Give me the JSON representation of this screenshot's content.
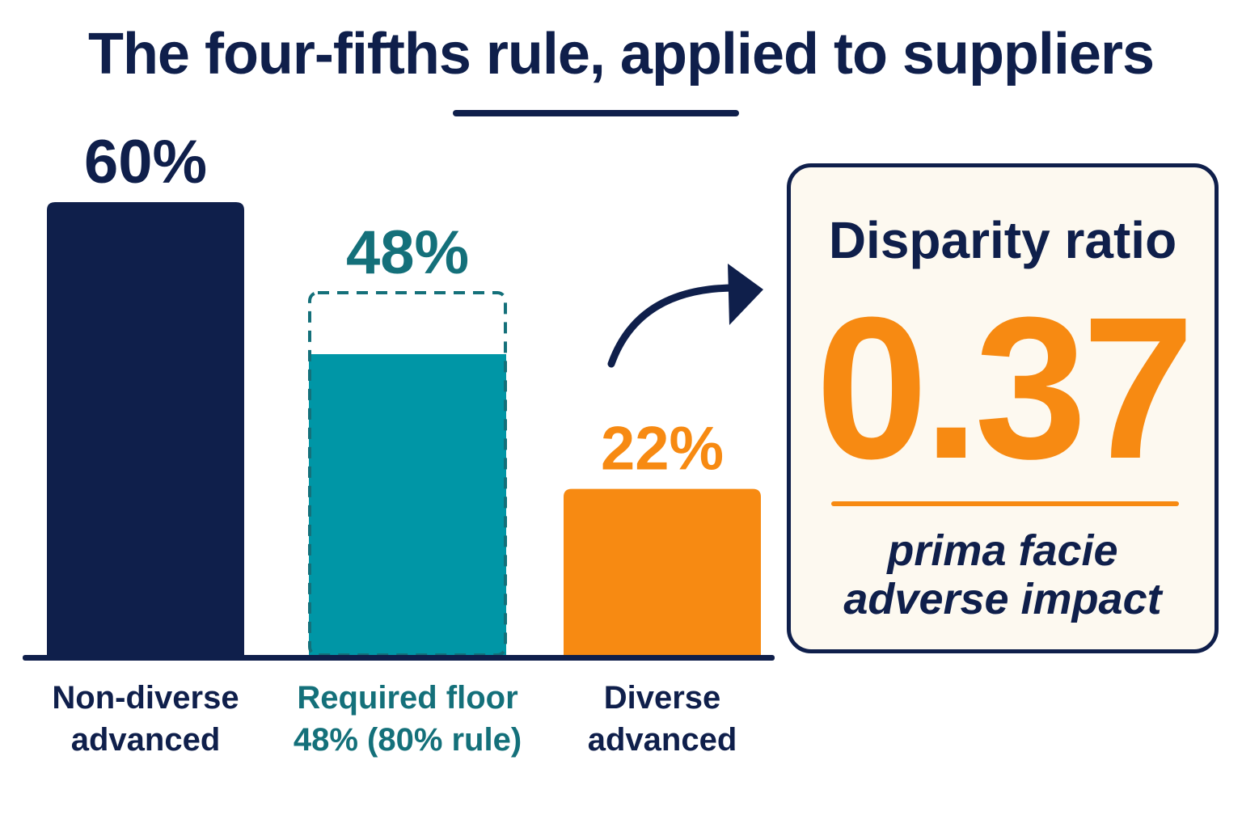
{
  "title": "The four-fifths rule, applied to suppliers",
  "colors": {
    "navy": "#0f1f4b",
    "teal": "#0096a6",
    "teal_text": "#14707a",
    "orange": "#f78a12",
    "callout_bg": "#fdf9f0"
  },
  "chart_data": {
    "type": "bar",
    "title": "The four-fifths rule, applied to suppliers",
    "categories": [
      "Non-diverse advanced",
      "Required floor 48% (80% rule)",
      "Diverse advanced"
    ],
    "category_lines": [
      [
        "Non-diverse",
        "advanced"
      ],
      [
        "Required floor",
        "48% (80% rule)"
      ],
      [
        "Diverse",
        "advanced"
      ]
    ],
    "values": [
      60,
      48,
      22
    ],
    "value_labels": [
      "60%",
      "48%",
      "22%"
    ],
    "unit": "%",
    "bar_colors": [
      "#0f1f4b",
      "#0096a6",
      "#f78a12"
    ],
    "label_colors": [
      "#0f1f4b",
      "#14707a",
      "#f78a12"
    ],
    "category_label_colors": [
      "#0f1f4b",
      "#14707a",
      "#0f1f4b"
    ],
    "threshold": {
      "value": 48,
      "style": "dashed outline",
      "applies_to": "Required floor 48% (80% rule)"
    },
    "xlabel": "",
    "ylabel": "",
    "ylim": [
      0,
      60
    ],
    "grid": false,
    "legend": "none"
  },
  "callout": {
    "label": "Disparity ratio",
    "value": "0.37",
    "note_line1": "prima facie",
    "note_line2": "adverse impact"
  }
}
